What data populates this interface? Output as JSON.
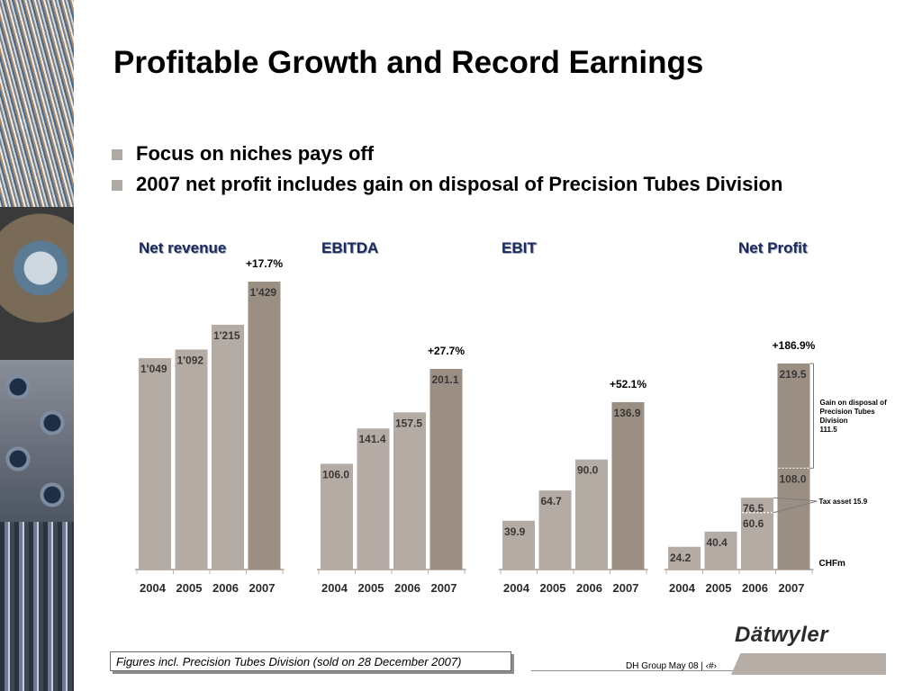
{
  "title": "Profitable Growth and Record Earnings",
  "bullets": [
    "Focus on niches pays off",
    "2007 net profit includes gain on disposal of Precision Tubes Division"
  ],
  "colors": {
    "bar_light": "#b5aba5",
    "bar_dark": "#9b8f83",
    "title_blue": "#1b2a5e",
    "bullet": "#b0aaa4"
  },
  "chart_data": [
    {
      "type": "bar",
      "title": "Net revenue",
      "categories": [
        "2004",
        "2005",
        "2006",
        "2007"
      ],
      "values": [
        1049,
        1092,
        1215,
        1429
      ],
      "value_labels": [
        "1'049",
        "1'092",
        "1'215",
        "1'429"
      ],
      "growth_label": "+17.7%"
    },
    {
      "type": "bar",
      "title": "EBITDA",
      "categories": [
        "2004",
        "2005",
        "2006",
        "2007"
      ],
      "values": [
        106.0,
        141.4,
        157.5,
        201.1
      ],
      "value_labels": [
        "106.0",
        "141.4",
        "157.5",
        "201.1"
      ],
      "growth_label": "+27.7%"
    },
    {
      "type": "bar",
      "title": "EBIT",
      "categories": [
        "2004",
        "2005",
        "2006",
        "2007"
      ],
      "values": [
        39.9,
        64.7,
        90.0,
        136.9
      ],
      "value_labels": [
        "39.9",
        "64.7",
        "90.0",
        "136.9"
      ],
      "growth_label": "+52.1%"
    },
    {
      "type": "bar",
      "title": "Net Profit",
      "categories": [
        "2004",
        "2005",
        "2006",
        "2007"
      ],
      "values": [
        24.2,
        40.4,
        76.5,
        219.5
      ],
      "value_labels": [
        "24.2",
        "40.4",
        "76.5",
        "219.5"
      ],
      "stacked_2006": {
        "base": 60.6,
        "base_label": "60.6",
        "tax_asset": 15.9
      },
      "stacked_2007": {
        "base": 108.0,
        "base_label": "108.0",
        "gain_on_disposal": 111.5
      },
      "growth_label": "+186.9%",
      "annotations": {
        "gain_note": [
          "Gain on disposal of",
          "Precision Tubes",
          "Division",
          "111.5"
        ],
        "tax_note": "Tax asset 15.9",
        "unit": "CHFm"
      }
    }
  ],
  "footnote": "Figures incl. Precision Tubes Division (sold on 28 December 2007)",
  "footer": {
    "text": "DH Group May 08 | ‹#›"
  },
  "logo": {
    "text": "Dätwyler"
  }
}
